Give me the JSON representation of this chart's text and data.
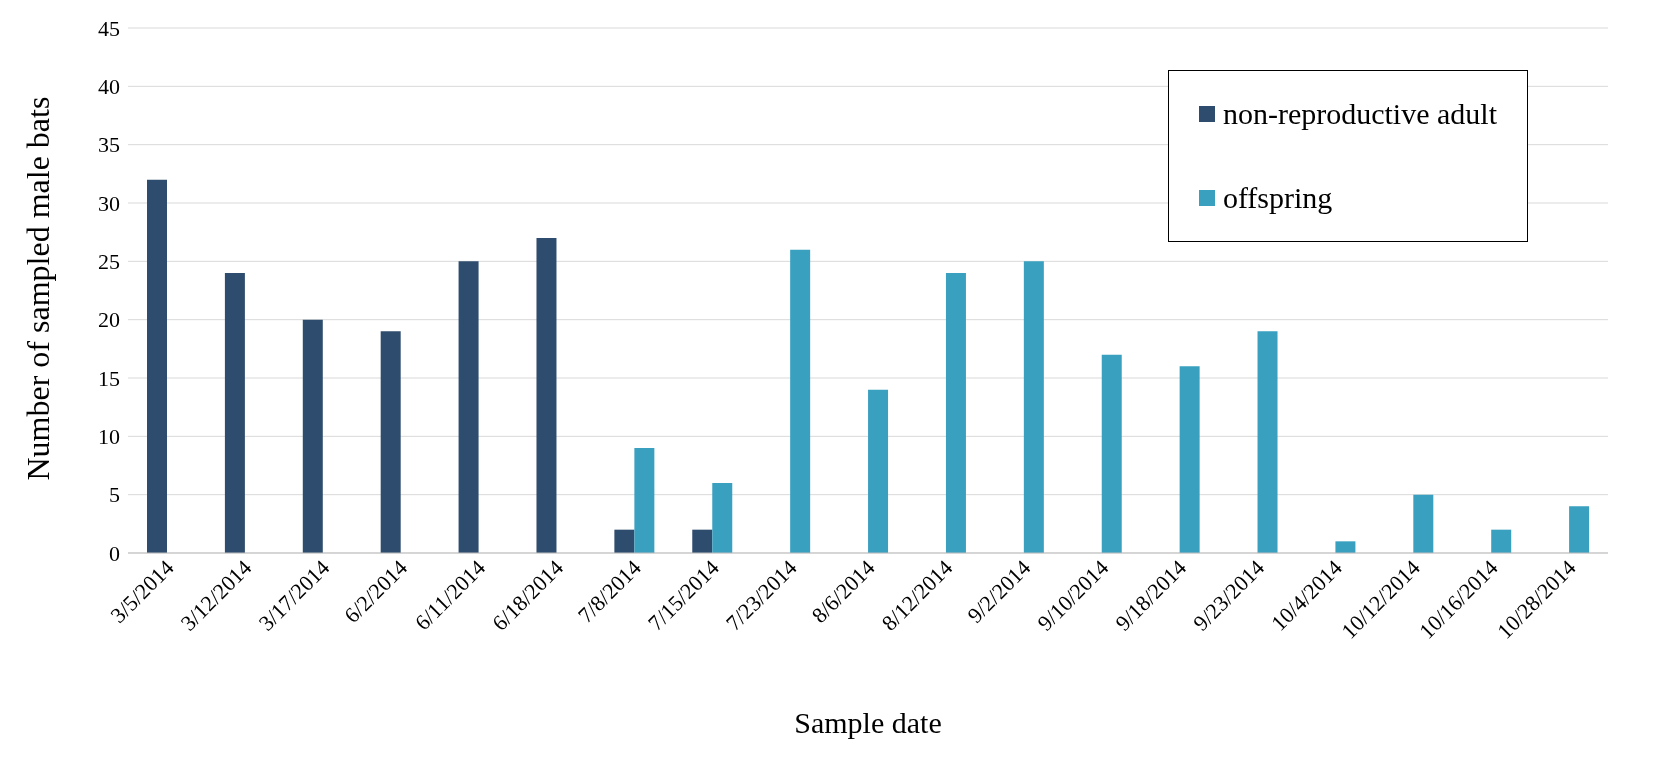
{
  "chart_data": {
    "type": "bar",
    "xlabel": "Sample date",
    "ylabel": "Number of sampled male bats",
    "categories": [
      "3/5/2014",
      "3/12/2014",
      "3/17/2014",
      "6/2/2014",
      "6/11/2014",
      "6/18/2014",
      "7/8/2014",
      "7/15/2014",
      "7/23/2014",
      "8/6/2014",
      "8/12/2014",
      "9/2/2014",
      "9/10/2014",
      "9/18/2014",
      "9/23/2014",
      "10/4/2014",
      "10/12/2014",
      "10/16/2014",
      "10/28/2014"
    ],
    "series": [
      {
        "name": "non-reproductive adult",
        "color": "#2e4d6e",
        "values": [
          32,
          24,
          20,
          19,
          25,
          27,
          2,
          2,
          null,
          null,
          null,
          null,
          null,
          null,
          null,
          null,
          null,
          null,
          null
        ]
      },
      {
        "name": "offspring",
        "color": "#39a0c0",
        "values": [
          null,
          null,
          null,
          null,
          null,
          null,
          9,
          6,
          26,
          14,
          24,
          25,
          17,
          16,
          19,
          1,
          5,
          2,
          4
        ]
      }
    ],
    "ylim": [
      0,
      45
    ],
    "yticks": [
      0,
      5,
      10,
      15,
      20,
      25,
      30,
      35,
      40,
      45
    ],
    "grid": "y",
    "legend": "top right"
  }
}
